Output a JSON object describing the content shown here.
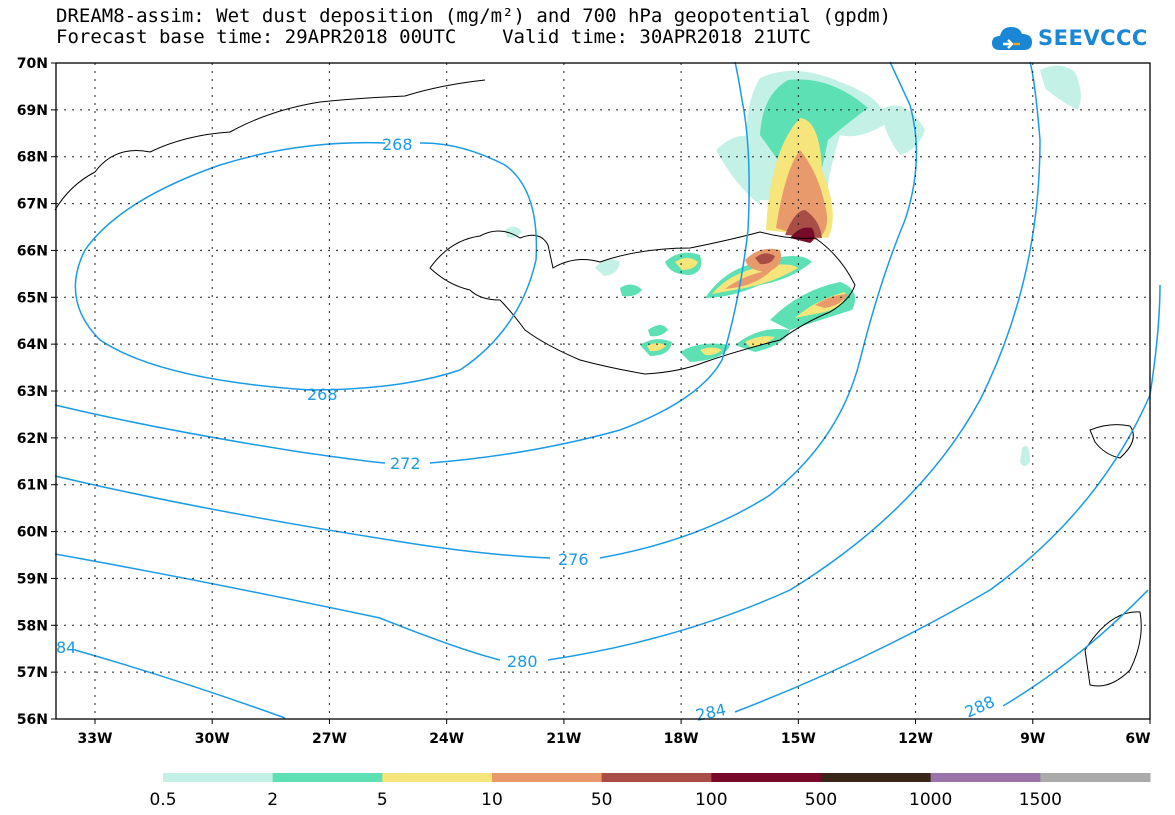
{
  "title": {
    "line1": "DREAM8-assim: Wet dust deposition (mg/m²) and 700 hPa geopotential (gpdm)",
    "line2": "Forecast base time: 29APR2018 00UTC    Valid time: 30APR2018 21UTC"
  },
  "logo": {
    "text": "SEEVCCC",
    "icon": "cloud-icon"
  },
  "map": {
    "lat_labels": [
      "70N",
      "69N",
      "68N",
      "67N",
      "66N",
      "65N",
      "64N",
      "63N",
      "62N",
      "61N",
      "60N",
      "59N",
      "58N",
      "57N",
      "56N"
    ],
    "lon_labels": [
      "33W",
      "30W",
      "27W",
      "24W",
      "21W",
      "18W",
      "15W",
      "12W",
      "9W",
      "6W"
    ],
    "contour_labels": [
      "268",
      "268",
      "272",
      "276",
      "280",
      "284",
      "288",
      "84"
    ]
  },
  "colorbar": {
    "labels": [
      "0.5",
      "2",
      "5",
      "10",
      "50",
      "100",
      "500",
      "1000",
      "1500"
    ],
    "colors": [
      "#c4f1e6",
      "#5ce0b4",
      "#f5e57a",
      "#e89a6c",
      "#a84e46",
      "#7a0a2a",
      "#3a2618",
      "#9a74a8",
      "#aaaaaa"
    ]
  },
  "colors": {
    "contour": "#1a9be6",
    "coast": "#000000"
  }
}
